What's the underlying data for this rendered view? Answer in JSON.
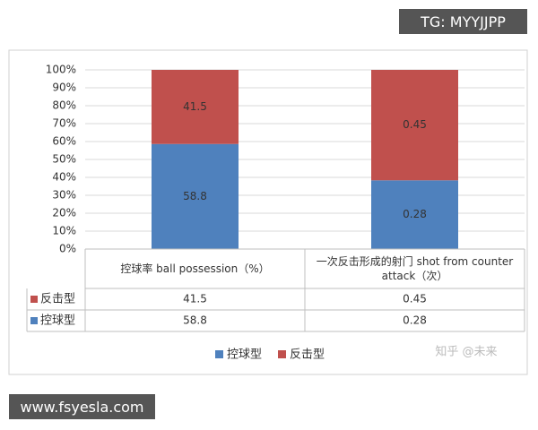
{
  "chart_data": {
    "type": "bar",
    "stacking": "percent",
    "categories": [
      "控球率 ball possession（%）",
      "一次反击形成的射门 shot from counter attack（次）"
    ],
    "series": [
      {
        "name": "控球型",
        "color": "#4f81bd",
        "values": [
          58.8,
          0.28
        ]
      },
      {
        "name": "反击型",
        "color": "#c0504d",
        "values": [
          41.5,
          0.45
        ]
      }
    ],
    "ylim": [
      0,
      100
    ],
    "yticks": [
      {
        "value": 0,
        "label": "0%"
      },
      {
        "value": 10,
        "label": "10%"
      },
      {
        "value": 20,
        "label": "20%"
      },
      {
        "value": 30,
        "label": "30%"
      },
      {
        "value": 40,
        "label": "40%"
      },
      {
        "value": 50,
        "label": "50%"
      },
      {
        "value": 60,
        "label": "60%"
      },
      {
        "value": 70,
        "label": "70%"
      },
      {
        "value": 80,
        "label": "80%"
      },
      {
        "value": 90,
        "label": "90%"
      },
      {
        "value": 100,
        "label": "100%"
      }
    ],
    "grid": true,
    "data_table": true,
    "legend": "bottom"
  },
  "watermarks": {
    "top": "TG: MYYJJPP",
    "bottom": "www.fsyesla.com",
    "zhihu": "知乎 @未来"
  }
}
